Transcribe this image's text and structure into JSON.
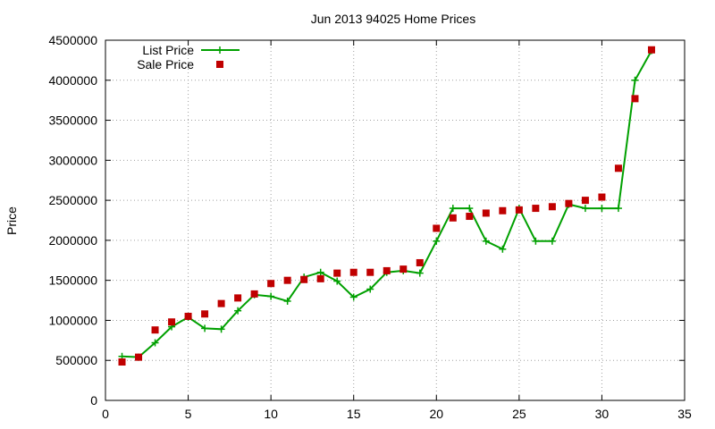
{
  "chart_data": {
    "type": "line",
    "title": "Jun 2013 94025 Home Prices",
    "xlabel": "",
    "ylabel": "Price",
    "xlim": [
      0,
      35
    ],
    "ylim": [
      0,
      4500000
    ],
    "x_ticks": [
      0,
      5,
      10,
      15,
      20,
      25,
      30,
      35
    ],
    "y_ticks": [
      0,
      500000,
      1000000,
      1500000,
      2000000,
      2500000,
      3000000,
      3500000,
      4000000,
      4500000
    ],
    "grid": true,
    "legend_position": "top-left",
    "series": [
      {
        "name": "List Price",
        "style": "line-with-plus-markers",
        "color": "#00a000",
        "x": [
          1,
          2,
          3,
          4,
          5,
          6,
          7,
          8,
          9,
          10,
          11,
          12,
          13,
          14,
          15,
          16,
          17,
          18,
          19,
          20,
          21,
          22,
          23,
          24,
          25,
          26,
          27,
          28,
          29,
          30,
          31,
          32,
          33
        ],
        "y": [
          550000,
          540000,
          720000,
          920000,
          1040000,
          900000,
          890000,
          1120000,
          1320000,
          1300000,
          1240000,
          1540000,
          1600000,
          1490000,
          1290000,
          1390000,
          1600000,
          1620000,
          1590000,
          1990000,
          2400000,
          2400000,
          1990000,
          1890000,
          2400000,
          1990000,
          1990000,
          2450000,
          2400000,
          2400000,
          2400000,
          4000000,
          4370000
        ]
      },
      {
        "name": "Sale Price",
        "style": "square-markers",
        "color": "#c00000",
        "x": [
          1,
          2,
          3,
          4,
          5,
          6,
          7,
          8,
          9,
          10,
          11,
          12,
          13,
          14,
          15,
          16,
          17,
          18,
          19,
          20,
          21,
          22,
          23,
          24,
          25,
          26,
          27,
          28,
          29,
          30,
          31,
          32,
          33
        ],
        "y": [
          480000,
          540000,
          880000,
          980000,
          1050000,
          1080000,
          1210000,
          1280000,
          1330000,
          1460000,
          1500000,
          1510000,
          1520000,
          1590000,
          1600000,
          1600000,
          1620000,
          1640000,
          1720000,
          2150000,
          2280000,
          2300000,
          2340000,
          2370000,
          2380000,
          2400000,
          2420000,
          2460000,
          2500000,
          2540000,
          2900000,
          3770000,
          4380000
        ]
      }
    ]
  }
}
